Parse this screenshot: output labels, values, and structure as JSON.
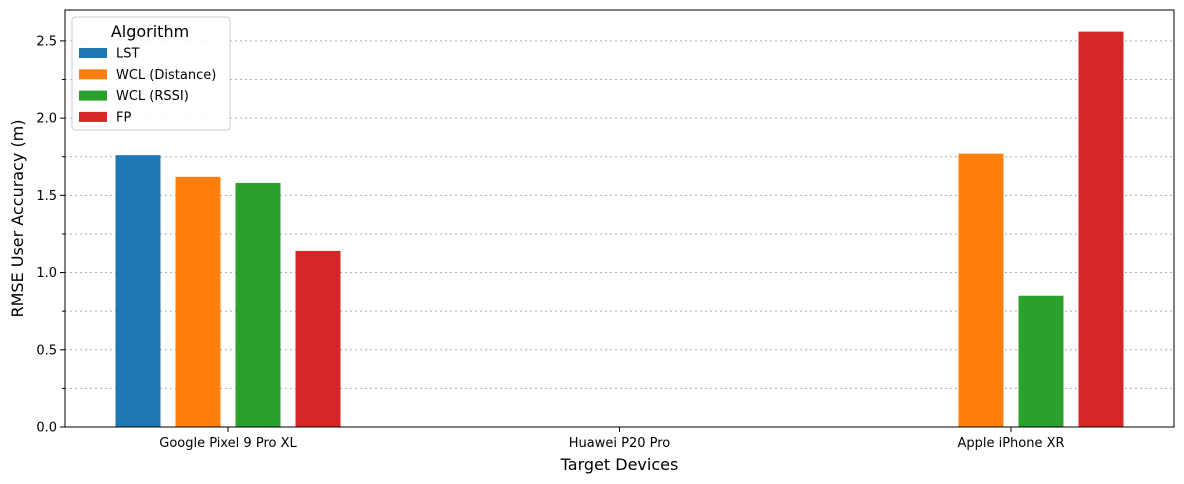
{
  "chart_data": {
    "type": "bar",
    "title": "",
    "xlabel": "Target Devices",
    "ylabel": "RMSE User Accuracy (m)",
    "categories": [
      "Google Pixel 9 Pro XL",
      "Huawei P20 Pro",
      "Apple iPhone XR"
    ],
    "ylim": [
      0,
      2.7
    ],
    "yticks": [
      0.0,
      0.5,
      1.0,
      1.5,
      2.0,
      2.5
    ],
    "ytick_labels": [
      "0.0",
      "0.5",
      "1.0",
      "1.5",
      "2.0",
      "2.5"
    ],
    "grid": true,
    "legend": {
      "title": "Algorithm",
      "placement": "top-left"
    },
    "series": [
      {
        "name": "LST",
        "color": "#1f77b4",
        "values": [
          1.76,
          null,
          null
        ]
      },
      {
        "name": "WCL (Distance)",
        "color": "#ff7f0e",
        "values": [
          1.62,
          null,
          1.77
        ]
      },
      {
        "name": "WCL (RSSI)",
        "color": "#2ca02c",
        "values": [
          1.58,
          null,
          0.85
        ]
      },
      {
        "name": "FP",
        "color": "#d62728",
        "values": [
          1.14,
          null,
          2.56
        ]
      }
    ]
  }
}
